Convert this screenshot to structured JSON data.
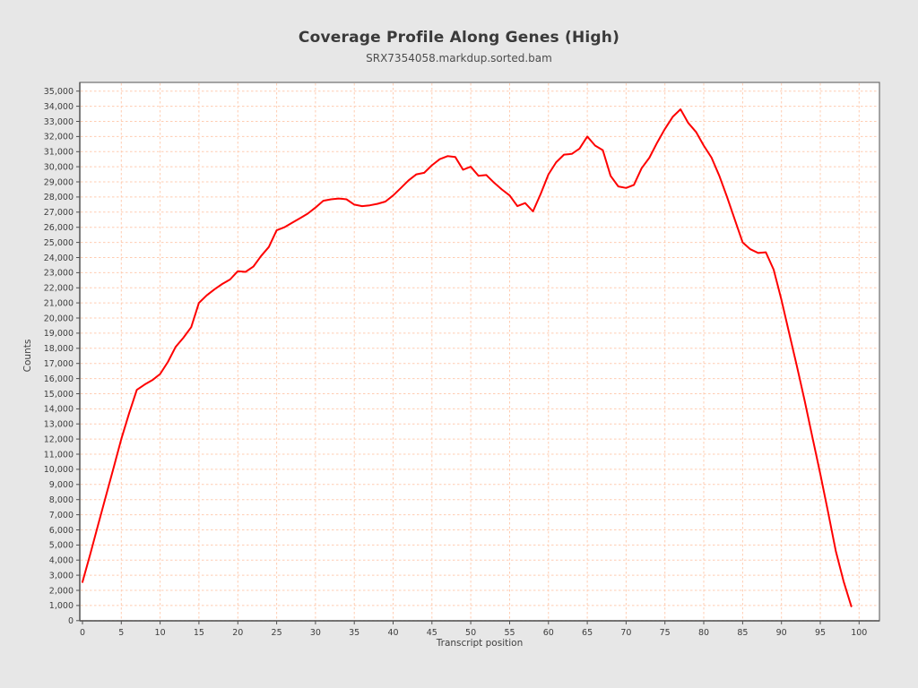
{
  "chart_data": {
    "type": "line",
    "title": "Coverage Profile Along Genes (High)",
    "subtitle": "SRX7354058.markdup.sorted.bam",
    "xlabel": "Transcript position",
    "ylabel": "Counts",
    "xlim": [
      0,
      100
    ],
    "ylim": [
      0,
      35000
    ],
    "xtick_step": 5,
    "ytick_step": 1000,
    "grid": "dashed",
    "legend": "none",
    "line_color": "#fe0000",
    "grid_color": "#ffccb1",
    "plot_background": "#ffffff",
    "page_background": "#e7e7e7",
    "x": [
      0,
      1,
      2,
      3,
      4,
      5,
      6,
      7,
      8,
      9,
      10,
      11,
      12,
      13,
      14,
      15,
      16,
      17,
      18,
      19,
      20,
      21,
      22,
      23,
      24,
      25,
      26,
      27,
      28,
      29,
      30,
      31,
      32,
      33,
      34,
      35,
      36,
      37,
      38,
      39,
      40,
      41,
      42,
      43,
      44,
      45,
      46,
      47,
      48,
      49,
      50,
      51,
      52,
      53,
      54,
      55,
      56,
      57,
      58,
      59,
      60,
      61,
      62,
      63,
      64,
      65,
      66,
      67,
      68,
      69,
      70,
      71,
      72,
      73,
      74,
      75,
      76,
      77,
      78,
      79,
      80,
      81,
      82,
      83,
      84,
      85,
      86,
      87,
      88,
      89,
      90,
      91,
      92,
      93,
      94,
      95,
      96,
      97,
      98,
      99
    ],
    "values": [
      2550,
      4400,
      6300,
      8200,
      10100,
      12000,
      13700,
      15250,
      15600,
      15900,
      16300,
      17100,
      18100,
      18700,
      19400,
      21000,
      21500,
      21900,
      22250,
      22550,
      23100,
      23050,
      23400,
      24100,
      24700,
      25800,
      26000,
      26300,
      26600,
      26900,
      27300,
      27750,
      27850,
      27900,
      27850,
      27500,
      27400,
      27450,
      27550,
      27700,
      28100,
      28600,
      29100,
      29500,
      29600,
      30100,
      30500,
      30700,
      30650,
      29800,
      30000,
      29400,
      29450,
      28950,
      28500,
      28100,
      27400,
      27600,
      27050,
      28200,
      29500,
      30300,
      30800,
      30850,
      31200,
      32000,
      31400,
      31100,
      29400,
      28700,
      28600,
      28800,
      29900,
      30600,
      31600,
      32500,
      33300,
      33800,
      32900,
      32300,
      31400,
      30600,
      29400,
      28000,
      26500,
      25000,
      24550,
      24300,
      24350,
      23200,
      21200,
      19000,
      16800,
      14500,
      12100,
      9700,
      7200,
      4600,
      2600,
      950
    ]
  }
}
